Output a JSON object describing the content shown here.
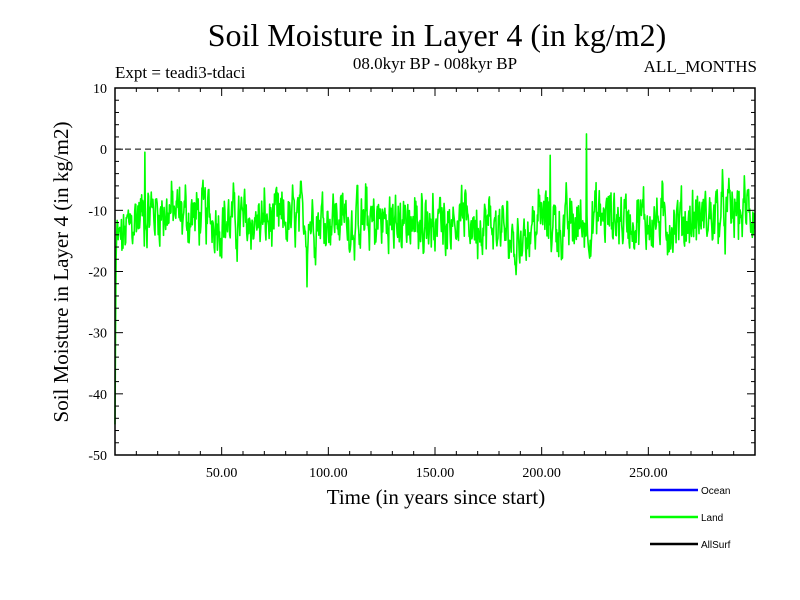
{
  "chart_data": {
    "type": "line",
    "title": "Soil Moisture in Layer 4 (in kg/m2)",
    "subtitle_left": "Expt = teadi3-tdaci",
    "subtitle_center": "08.0kyr BP - 008kyr BP",
    "subtitle_right": "ALL_MONTHS",
    "xlabel": "Time (in years since start)",
    "ylabel": "Soil Moisture in Layer 4 (in kg/m2)",
    "xlim": [
      0,
      300
    ],
    "ylim": [
      -50,
      10
    ],
    "x_ticks": [
      {
        "value": 50,
        "label": "50.00"
      },
      {
        "value": 100,
        "label": "100.00"
      },
      {
        "value": 150,
        "label": "150.00"
      },
      {
        "value": 200,
        "label": "200.00"
      },
      {
        "value": 250,
        "label": "250.00"
      }
    ],
    "y_ticks": [
      {
        "value": 10,
        "label": "10"
      },
      {
        "value": 0,
        "label": "0"
      },
      {
        "value": -10,
        "label": "-10"
      },
      {
        "value": -20,
        "label": "-20"
      },
      {
        "value": -30,
        "label": "-30"
      },
      {
        "value": -40,
        "label": "-40"
      },
      {
        "value": -50,
        "label": "-50"
      }
    ],
    "reference_line": {
      "value": 0,
      "style": "dashed"
    },
    "legend": [
      {
        "name": "Ocean",
        "color": "#0000ff"
      },
      {
        "name": "Land",
        "color": "#00ff00"
      },
      {
        "name": "AllSurf",
        "color": "#000000"
      }
    ],
    "series": [
      {
        "name": "Land",
        "color": "#00ff00",
        "x_start": 0,
        "x_step": 0.25,
        "count": 1200,
        "initial_ramp": [
          -45,
          -30,
          -18
        ],
        "segments": [
          {
            "x": 3,
            "mean": -15
          },
          {
            "x": 10,
            "mean": -11
          },
          {
            "x": 20,
            "mean": -10
          },
          {
            "x": 40,
            "mean": -11
          },
          {
            "x": 60,
            "mean": -12
          },
          {
            "x": 80,
            "mean": -12
          },
          {
            "x": 100,
            "mean": -11
          },
          {
            "x": 120,
            "mean": -12
          },
          {
            "x": 140,
            "mean": -12
          },
          {
            "x": 160,
            "mean": -11
          },
          {
            "x": 180,
            "mean": -13
          },
          {
            "x": 190,
            "mean": -15
          },
          {
            "x": 200,
            "mean": -11
          },
          {
            "x": 210,
            "mean": -13
          },
          {
            "x": 230,
            "mean": -11
          },
          {
            "x": 260,
            "mean": -12
          },
          {
            "x": 280,
            "mean": -11
          },
          {
            "x": 300,
            "mean": -10
          }
        ],
        "amplitude": 4.5,
        "extremes": [
          {
            "x": 14,
            "value": -0.5
          },
          {
            "x": 90,
            "value": -22.5
          },
          {
            "x": 188,
            "value": -20.5
          },
          {
            "x": 204,
            "value": -1
          },
          {
            "x": 221,
            "value": 2.5
          }
        ]
      },
      {
        "name": "Ocean",
        "color": "#0000ff",
        "values": []
      },
      {
        "name": "AllSurf",
        "color": "#000000",
        "values": []
      }
    ]
  }
}
